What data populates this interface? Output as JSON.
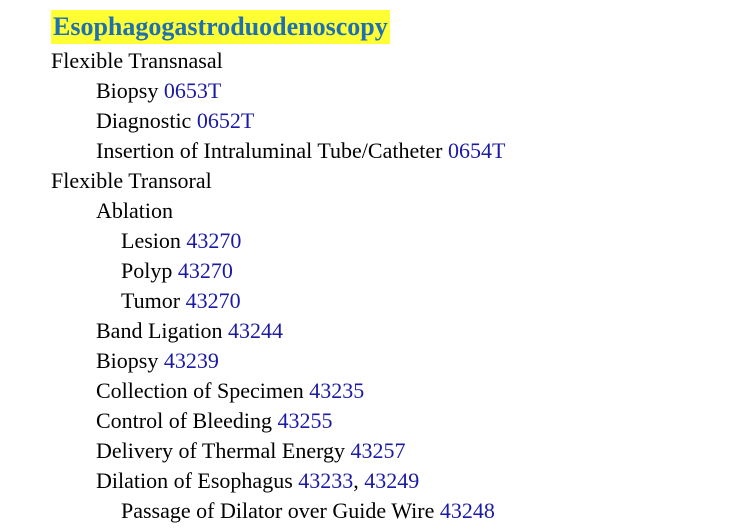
{
  "heading": "Esophagogastroduodenoscopy",
  "entries": [
    {
      "level": 0,
      "label": "Flexible Transnasal",
      "codes": []
    },
    {
      "level": 1,
      "label": "Biopsy",
      "codes": [
        "0653T"
      ]
    },
    {
      "level": 1,
      "label": "Diagnostic",
      "codes": [
        "0652T"
      ]
    },
    {
      "level": 1,
      "label": "Insertion of Intraluminal Tube/Catheter",
      "codes": [
        "0654T"
      ]
    },
    {
      "level": 0,
      "label": "Flexible Transoral",
      "codes": []
    },
    {
      "level": 1,
      "label": "Ablation",
      "codes": []
    },
    {
      "level": 2,
      "label": "Lesion",
      "codes": [
        "43270"
      ]
    },
    {
      "level": 2,
      "label": "Polyp",
      "codes": [
        "43270"
      ]
    },
    {
      "level": 2,
      "label": "Tumor",
      "codes": [
        "43270"
      ]
    },
    {
      "level": 1,
      "label": "Band Ligation",
      "codes": [
        "43244"
      ]
    },
    {
      "level": 1,
      "label": "Biopsy",
      "codes": [
        "43239"
      ]
    },
    {
      "level": 1,
      "label": "Collection of Specimen",
      "codes": [
        "43235"
      ]
    },
    {
      "level": 1,
      "label": "Control of Bleeding",
      "codes": [
        "43255"
      ]
    },
    {
      "level": 1,
      "label": "Delivery of Thermal Energy",
      "codes": [
        "43257"
      ]
    },
    {
      "level": 1,
      "label": "Dilation of Esophagus",
      "codes": [
        "43233",
        "43249"
      ]
    },
    {
      "level": 2,
      "label": "Passage of Dilator over Guide Wire",
      "codes": [
        "43248"
      ]
    }
  ],
  "colors": {
    "heading_text": "#1f6fb3",
    "heading_highlight": "#ffff33",
    "link": "#1a1aa6",
    "text": "#000000"
  }
}
